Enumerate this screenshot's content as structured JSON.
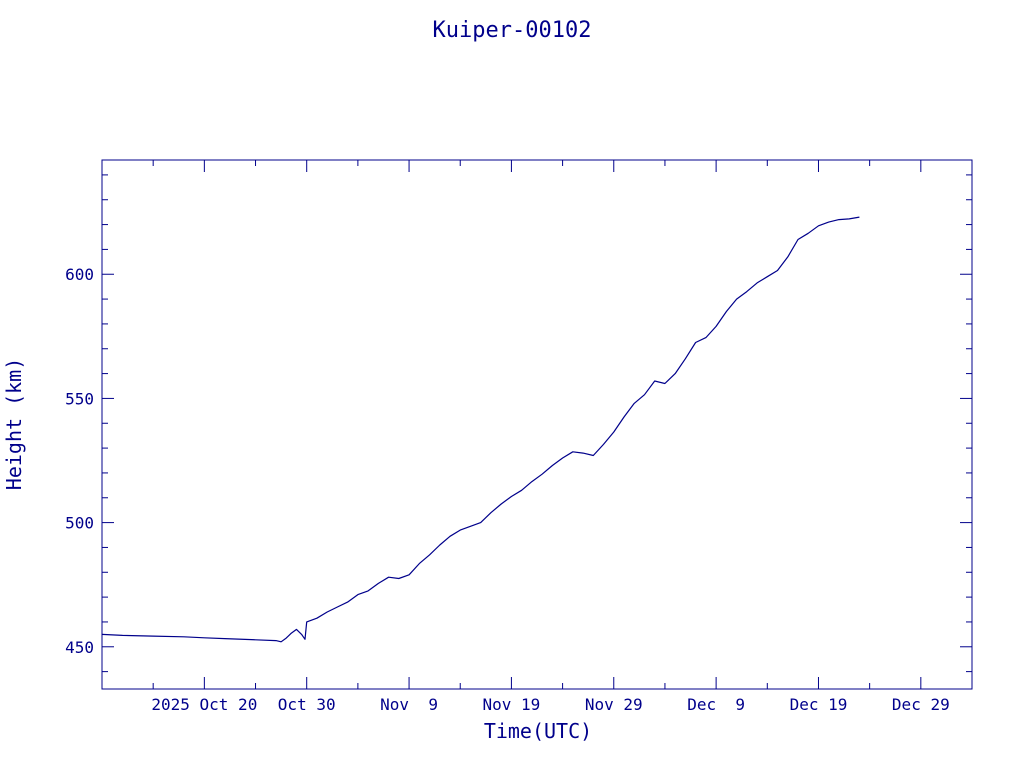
{
  "chart_data": {
    "type": "line",
    "title": "Kuiper-00102",
    "xlabel": "Time(UTC)",
    "ylabel": "Height (km)",
    "color": "#00008b",
    "grid": false,
    "xlim": [
      "2025-10-10",
      "2026-01-03"
    ],
    "ylim": [
      433,
      646
    ],
    "y_ticks": [
      450,
      500,
      550,
      600
    ],
    "x_ticks": [
      {
        "date": "2025-10-20",
        "label": "2025 Oct 20"
      },
      {
        "date": "2025-10-30",
        "label": "Oct 30"
      },
      {
        "date": "2025-11-09",
        "label": "Nov  9"
      },
      {
        "date": "2025-11-19",
        "label": "Nov 19"
      },
      {
        "date": "2025-11-29",
        "label": "Nov 29"
      },
      {
        "date": "2025-12-09",
        "label": "Dec  9"
      },
      {
        "date": "2025-12-19",
        "label": "Dec 19"
      },
      {
        "date": "2025-12-29",
        "label": "Dec 29"
      }
    ],
    "series": [
      {
        "points": [
          [
            "2025-10-10",
            455.0
          ],
          [
            "2025-10-12",
            454.6
          ],
          [
            "2025-10-15",
            454.3
          ],
          [
            "2025-10-18",
            454.0
          ],
          [
            "2025-10-20",
            453.6
          ],
          [
            "2025-10-22",
            453.3
          ],
          [
            "2025-10-25",
            452.8
          ],
          [
            "2025-10-27",
            452.5
          ],
          [
            "2025-10-27 12:00",
            452.0
          ],
          [
            "2025-10-28",
            453.5
          ],
          [
            "2025-10-28 12:00",
            455.5
          ],
          [
            "2025-10-29",
            457.0
          ],
          [
            "2025-10-29 12:00",
            455.0
          ],
          [
            "2025-10-29 20:00",
            453.0
          ],
          [
            "2025-10-30",
            460.0
          ],
          [
            "2025-10-31",
            461.5
          ],
          [
            "2025-11-01",
            464.0
          ],
          [
            "2025-11-02",
            466.0
          ],
          [
            "2025-11-03",
            468.0
          ],
          [
            "2025-11-04",
            471.0
          ],
          [
            "2025-11-05",
            472.5
          ],
          [
            "2025-11-06",
            475.5
          ],
          [
            "2025-11-07",
            478.0
          ],
          [
            "2025-11-08",
            477.5
          ],
          [
            "2025-11-09",
            479.0
          ],
          [
            "2025-11-10",
            483.5
          ],
          [
            "2025-11-11",
            487.0
          ],
          [
            "2025-11-12",
            491.0
          ],
          [
            "2025-11-13",
            494.5
          ],
          [
            "2025-11-14",
            497.0
          ],
          [
            "2025-11-15",
            498.5
          ],
          [
            "2025-11-16",
            500.0
          ],
          [
            "2025-11-17",
            504.0
          ],
          [
            "2025-11-18",
            507.5
          ],
          [
            "2025-11-19",
            510.5
          ],
          [
            "2025-11-20",
            513.0
          ],
          [
            "2025-11-21",
            516.5
          ],
          [
            "2025-11-22",
            519.5
          ],
          [
            "2025-11-23",
            523.0
          ],
          [
            "2025-11-24",
            526.0
          ],
          [
            "2025-11-25",
            528.5
          ],
          [
            "2025-11-26",
            528.0
          ],
          [
            "2025-11-27",
            527.0
          ],
          [
            "2025-11-28",
            531.5
          ],
          [
            "2025-11-29",
            536.5
          ],
          [
            "2025-11-30",
            542.5
          ],
          [
            "2025-12-01",
            548.0
          ],
          [
            "2025-12-02",
            551.5
          ],
          [
            "2025-12-03",
            557.0
          ],
          [
            "2025-12-04",
            556.0
          ],
          [
            "2025-12-05",
            560.0
          ],
          [
            "2025-12-06",
            566.0
          ],
          [
            "2025-12-07",
            572.5
          ],
          [
            "2025-12-08",
            574.5
          ],
          [
            "2025-12-09",
            579.0
          ],
          [
            "2025-12-10",
            585.0
          ],
          [
            "2025-12-11",
            590.0
          ],
          [
            "2025-12-12",
            593.0
          ],
          [
            "2025-12-13",
            596.5
          ],
          [
            "2025-12-14",
            599.0
          ],
          [
            "2025-12-15",
            601.5
          ],
          [
            "2025-12-16",
            607.0
          ],
          [
            "2025-12-17",
            614.0
          ],
          [
            "2025-12-18",
            616.5
          ],
          [
            "2025-12-19",
            619.5
          ],
          [
            "2025-12-20",
            621.0
          ],
          [
            "2025-12-21",
            622.0
          ],
          [
            "2025-12-22",
            622.3
          ],
          [
            "2025-12-23",
            623.0
          ]
        ]
      }
    ]
  }
}
